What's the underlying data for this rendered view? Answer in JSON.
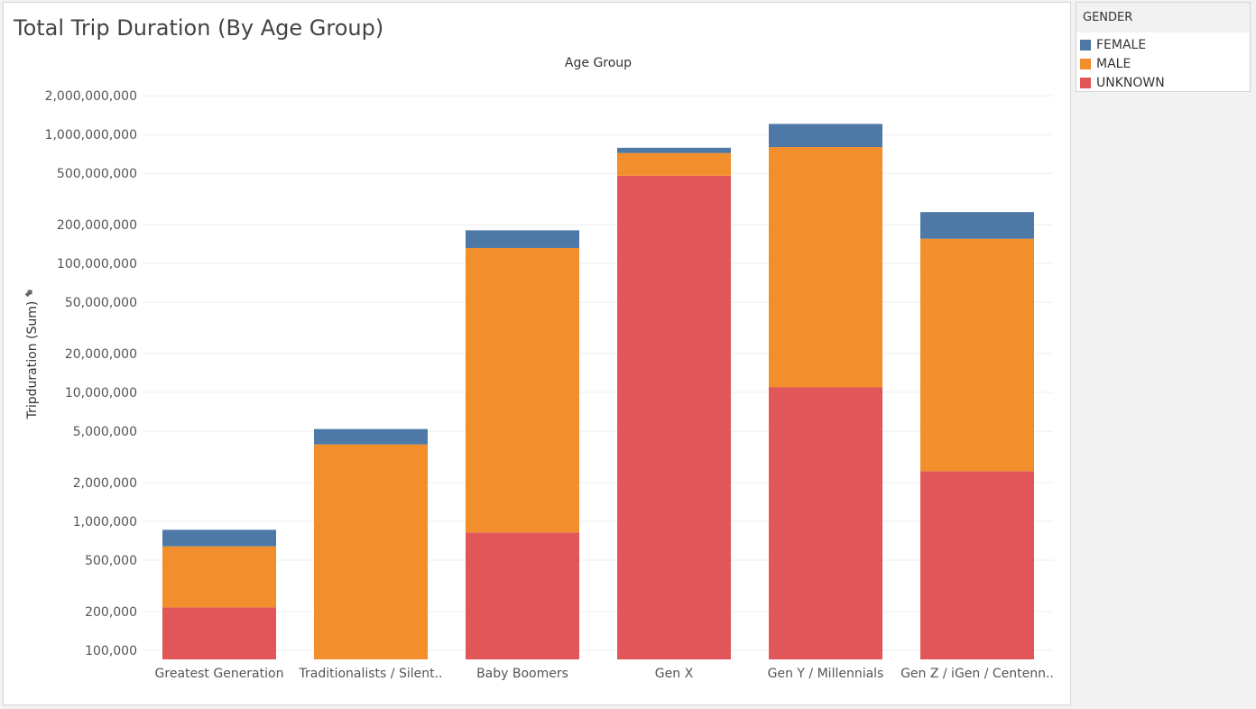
{
  "title": "Total Trip Duration (By Age Group)",
  "legend": {
    "title": "GENDER",
    "items": [
      {
        "label": "FEMALE",
        "color": "#4e79a7"
      },
      {
        "label": "MALE",
        "color": "#f28e2b"
      },
      {
        "label": "UNKNOWN",
        "color": "#e15759"
      }
    ]
  },
  "chart_data": {
    "type": "bar",
    "stacked": true,
    "scale": "log",
    "title": "Total Trip Duration (By Age Group)",
    "xlabel": "Age Group",
    "ylabel": "Tripduration (Sum)",
    "ylim": [
      85000,
      3000000000
    ],
    "y_ticks": [
      {
        "value": 100000,
        "label": "100,000"
      },
      {
        "value": 200000,
        "label": "200,000"
      },
      {
        "value": 500000,
        "label": "500,000"
      },
      {
        "value": 1000000,
        "label": "1,000,000"
      },
      {
        "value": 2000000,
        "label": "2,000,000"
      },
      {
        "value": 5000000,
        "label": "5,000,000"
      },
      {
        "value": 10000000,
        "label": "10,000,000"
      },
      {
        "value": 20000000,
        "label": "20,000,000"
      },
      {
        "value": 50000000,
        "label": "50,000,000"
      },
      {
        "value": 100000000,
        "label": "100,000,000"
      },
      {
        "value": 200000000,
        "label": "200,000,000"
      },
      {
        "value": 500000000,
        "label": "500,000,000"
      },
      {
        "value": 1000000000,
        "label": "1,000,000,000"
      },
      {
        "value": 2000000000,
        "label": "2,000,000,000"
      }
    ],
    "categories": [
      "Greatest Generation",
      "Traditionalists / Silent..",
      "Baby Boomers",
      "Gen X",
      "Gen Y / Millennials",
      "Gen Z / iGen / Centenn.."
    ],
    "series": [
      {
        "name": "UNKNOWN",
        "color": "#e15759",
        "values": [
          215000,
          0,
          820000,
          480000000,
          11000000,
          2450000
        ]
      },
      {
        "name": "MALE",
        "color": "#f28e2b",
        "values": [
          425000,
          3950000,
          131000000,
          240000000,
          789000000,
          153000000
        ]
      },
      {
        "name": "FEMALE",
        "color": "#4e79a7",
        "values": [
          220000,
          1250000,
          49000000,
          70000000,
          410000000,
          95000000
        ]
      }
    ]
  }
}
